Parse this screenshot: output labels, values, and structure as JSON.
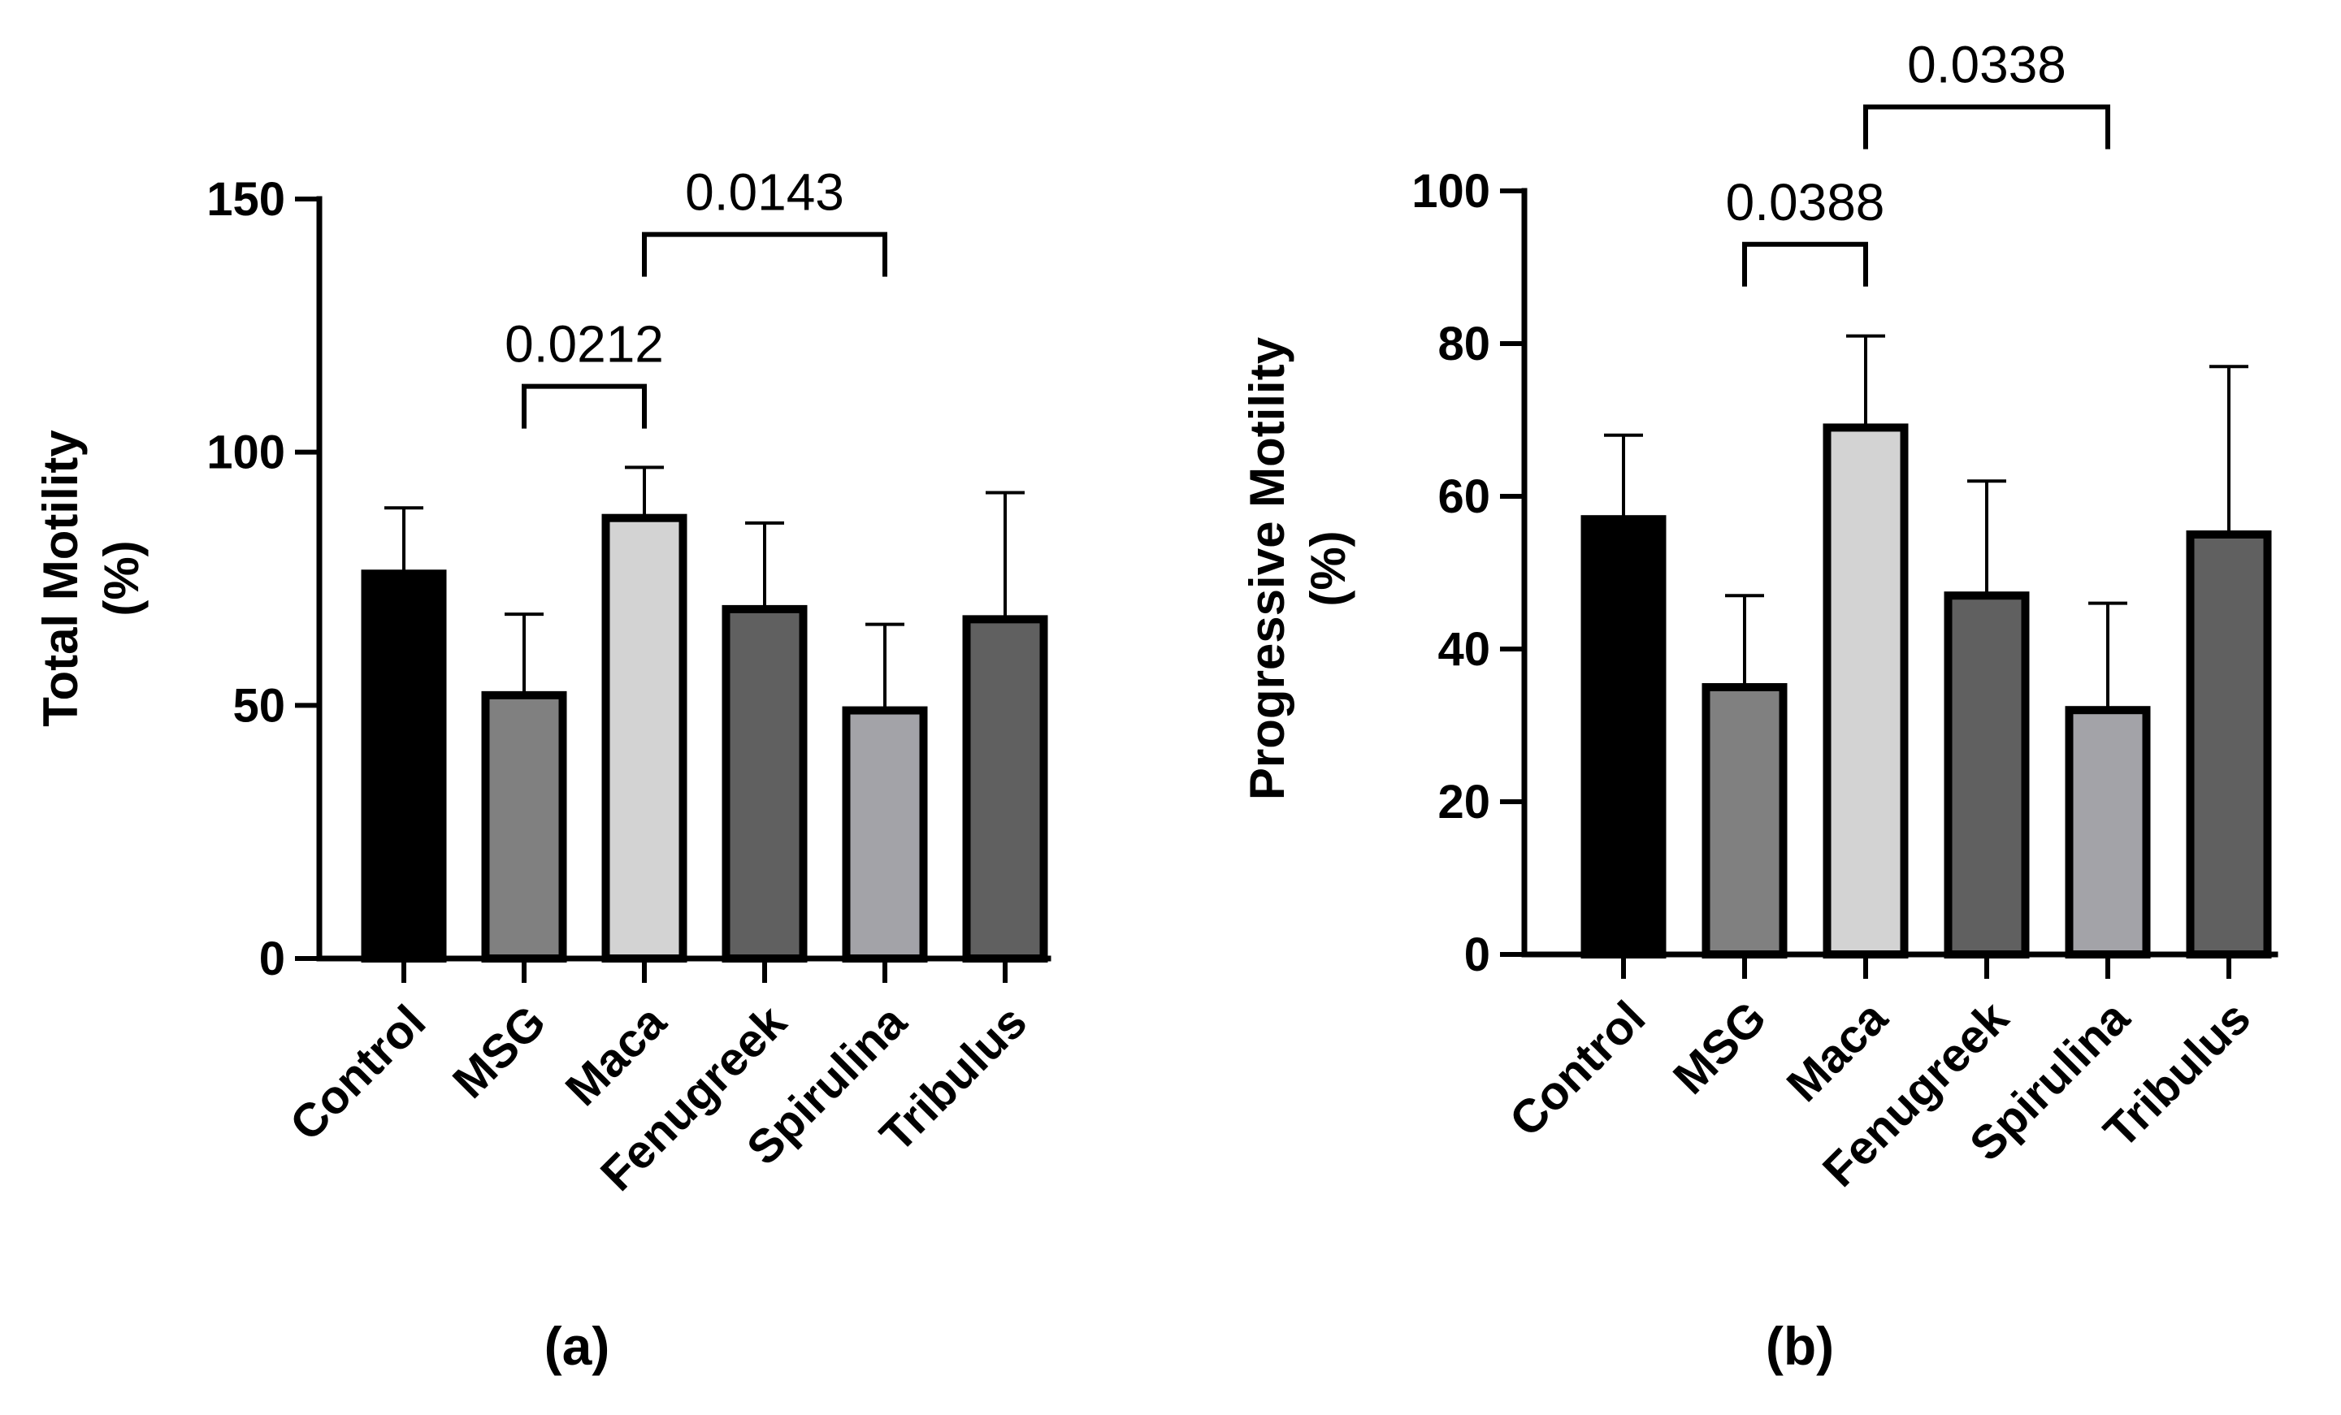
{
  "chart_data": [
    {
      "type": "bar",
      "panel_label": "(a)",
      "ylabel_line1": "Total Motility",
      "ylabel_line2": "(%)",
      "xlabel": "",
      "ylim": [
        0,
        150
      ],
      "yticks": [
        0,
        50,
        100,
        150
      ],
      "categories": [
        "Control",
        "MSG",
        "Maca",
        "Fenugreek",
        "Spirulina",
        "Tribulus"
      ],
      "values": [
        76,
        52,
        87,
        69,
        49,
        67
      ],
      "error_upper": [
        89,
        68,
        97,
        86,
        66,
        92
      ],
      "fill_colors": [
        "#000000",
        "#808080",
        "#d3d3d3",
        "#606060",
        "#a3a3a8",
        "#606060"
      ],
      "comparisons": [
        {
          "from": "MSG",
          "to": "Maca",
          "label": "0.0212",
          "at": 113
        },
        {
          "from": "Maca",
          "to": "Spirulina",
          "label": "0.0143",
          "at": 143
        }
      ]
    },
    {
      "type": "bar",
      "panel_label": "(b)",
      "ylabel_line1": "Progressive Motility",
      "ylabel_line2": "(%)",
      "xlabel": "",
      "ylim": [
        0,
        100
      ],
      "yticks": [
        0,
        20,
        40,
        60,
        80,
        100
      ],
      "categories": [
        "Control",
        "MSG",
        "Maca",
        "Fenugreek",
        "Spirulina",
        "Tribulus"
      ],
      "values": [
        57,
        35,
        69,
        47,
        32,
        55
      ],
      "error_upper": [
        68,
        47,
        81,
        62,
        46,
        77
      ],
      "fill_colors": [
        "#000000",
        "#808080",
        "#d3d3d3",
        "#606060",
        "#a3a3a8",
        "#606060"
      ],
      "comparisons": [
        {
          "from": "MSG",
          "to": "Maca",
          "label": "0.0388",
          "at": 93
        },
        {
          "from": "Maca",
          "to": "Spirulina",
          "label": "0.0338",
          "at": 111
        }
      ]
    }
  ]
}
